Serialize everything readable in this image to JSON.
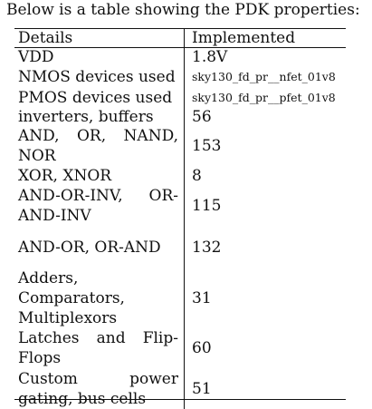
{
  "caption": "Below is a table showing the PDK properties:",
  "table": {
    "headers": [
      "Details",
      "Implemented"
    ],
    "rows": [
      {
        "detail": "VDD",
        "value": "1.8V"
      },
      {
        "detail": "NMOS devices used",
        "value": "sky130_fd_pr__nfet_01v8"
      },
      {
        "detail": "PMOS devices used",
        "value": "sky130_fd_pr__pfet_01v8"
      },
      {
        "detail": "inverters, buffers",
        "value": "56"
      },
      {
        "detail": "AND, OR, NAND, NOR",
        "value": "153"
      },
      {
        "detail": "XOR, XNOR",
        "value": "8"
      },
      {
        "detail": "AND-OR-INV, OR-AND-INV",
        "value": "115"
      },
      {
        "detail": "AND-OR, OR-AND",
        "value": "132"
      },
      {
        "detail": "Adders, Comparators, Multiplexors",
        "value": "31"
      },
      {
        "detail": "Latches and Flip-Flops",
        "value": "60"
      },
      {
        "detail": "Custom power gating, bus cells",
        "value": "51"
      }
    ]
  }
}
